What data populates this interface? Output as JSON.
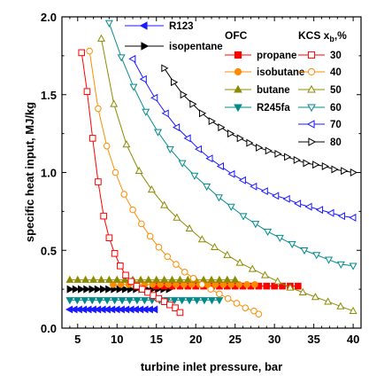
{
  "chart_data": {
    "type": "scatter",
    "xlabel": "turbine inlet pressure, bar",
    "ylabel": "specific heat input, MJ/kg",
    "xlim": [
      3,
      41
    ],
    "ylim": [
      0,
      2.0
    ],
    "xticks": [
      5,
      10,
      15,
      20,
      25,
      30,
      35,
      40
    ],
    "xtick_labels": [
      "5",
      "10",
      "15",
      "20",
      "25",
      "30",
      "35",
      "40"
    ],
    "yticks": [
      0,
      0.5,
      1.0,
      1.5,
      2.0
    ],
    "ytick_labels": [
      "0.0",
      "0.5",
      "1.0",
      "1.5",
      "2.0"
    ],
    "grid": false,
    "legend_ofc_title": "OFC",
    "legend_kcs_title": "KCS x",
    "legend_kcs_sub": "b",
    "legend_kcs_suffix": ",%",
    "series": [
      {
        "name": "R123",
        "group": "OFC",
        "marker": "triangle-left",
        "color": "#1a1aff",
        "filled": true,
        "x": [
          4.0,
          4.6,
          5.2,
          5.8,
          6.4,
          7.0,
          7.6,
          8.2,
          8.8,
          9.4,
          10.0,
          10.6,
          11.2,
          11.8,
          12.4,
          13.0,
          13.6,
          14.2,
          14.8
        ],
        "y": [
          0.12,
          0.12,
          0.12,
          0.12,
          0.12,
          0.12,
          0.12,
          0.12,
          0.12,
          0.12,
          0.12,
          0.12,
          0.12,
          0.12,
          0.12,
          0.12,
          0.12,
          0.12,
          0.12
        ]
      },
      {
        "name": "isopentane",
        "group": "OFC",
        "marker": "triangle-right",
        "color": "#000000",
        "filled": true,
        "x": [
          4.0,
          4.7,
          5.4,
          6.1,
          6.8,
          7.5,
          8.2,
          8.9,
          9.6,
          10.3,
          11.0,
          11.7,
          12.4,
          13.1,
          13.8,
          14.5,
          15.2,
          15.9,
          16.6
        ],
        "y": [
          0.25,
          0.25,
          0.25,
          0.25,
          0.25,
          0.25,
          0.25,
          0.25,
          0.25,
          0.25,
          0.25,
          0.25,
          0.25,
          0.25,
          0.25,
          0.25,
          0.25,
          0.25,
          0.25
        ]
      },
      {
        "name": "propane",
        "group": "OFC",
        "marker": "square",
        "color": "#ff0000",
        "filled": true,
        "x": [
          15.0,
          16.0,
          17.0,
          18.0,
          19.0,
          20.0,
          21.0,
          22.0,
          23.0,
          24.0,
          25.0,
          26.0,
          27.0,
          28.0,
          29.0,
          30.0,
          31.0,
          32.0,
          33.0
        ],
        "y": [
          0.27,
          0.27,
          0.27,
          0.27,
          0.27,
          0.27,
          0.27,
          0.27,
          0.27,
          0.27,
          0.27,
          0.27,
          0.27,
          0.27,
          0.27,
          0.27,
          0.27,
          0.27,
          0.27
        ]
      },
      {
        "name": "isobutane",
        "group": "OFC",
        "marker": "circle",
        "color": "#ff8c00",
        "filled": true,
        "x": [
          9.5,
          10.5,
          11.5,
          12.5,
          13.5,
          14.5,
          15.5,
          16.5,
          17.5,
          18.5,
          19.5,
          20.5,
          21.5,
          22.5,
          23.5,
          24.5,
          25.5,
          26.5,
          27.5
        ],
        "y": [
          0.28,
          0.28,
          0.28,
          0.28,
          0.28,
          0.28,
          0.28,
          0.28,
          0.28,
          0.28,
          0.28,
          0.28,
          0.28,
          0.28,
          0.28,
          0.28,
          0.28,
          0.28,
          0.28
        ]
      },
      {
        "name": "butane",
        "group": "OFC",
        "marker": "triangle-up",
        "color": "#8b8b00",
        "filled": true,
        "x": [
          4.0,
          5.0,
          6.0,
          7.0,
          8.0,
          9.0,
          10.0,
          11.0,
          12.0,
          13.0,
          14.0,
          15.0,
          16.0,
          17.0,
          18.0,
          19.0,
          20.0,
          21.0,
          22.0,
          23.0,
          24.0,
          25.0
        ],
        "y": [
          0.31,
          0.31,
          0.31,
          0.31,
          0.31,
          0.31,
          0.31,
          0.31,
          0.31,
          0.31,
          0.31,
          0.31,
          0.31,
          0.31,
          0.31,
          0.31,
          0.31,
          0.31,
          0.31,
          0.31,
          0.31,
          0.31
        ]
      },
      {
        "name": "R245fa",
        "group": "OFC",
        "marker": "triangle-down",
        "color": "#008b8b",
        "filled": true,
        "x": [
          4.0,
          4.95,
          5.9,
          6.85,
          7.8,
          8.75,
          9.7,
          10.65,
          11.6,
          12.55,
          13.5,
          14.45,
          15.4,
          16.35,
          17.3,
          18.25,
          19.2,
          20.15,
          21.1,
          22.05,
          23.0
        ],
        "y": [
          0.18,
          0.18,
          0.18,
          0.18,
          0.18,
          0.18,
          0.18,
          0.18,
          0.18,
          0.18,
          0.18,
          0.18,
          0.18,
          0.18,
          0.18,
          0.18,
          0.18,
          0.18,
          0.18,
          0.18,
          0.18
        ]
      },
      {
        "name": "30",
        "group": "KCS",
        "marker": "square",
        "color": "#ff0000",
        "filled": false,
        "x": [
          5.5,
          6.2,
          6.9,
          7.6,
          8.3,
          9.0,
          9.7,
          10.4,
          11.1,
          11.8,
          12.5,
          13.2,
          13.9,
          14.6,
          15.3,
          16.0,
          16.7,
          17.4,
          18.0
        ],
        "y": [
          1.77,
          1.52,
          1.22,
          0.94,
          0.72,
          0.58,
          0.48,
          0.4,
          0.34,
          0.3,
          0.27,
          0.25,
          0.23,
          0.21,
          0.19,
          0.17,
          0.15,
          0.13,
          0.1
        ]
      },
      {
        "name": "40",
        "group": "KCS",
        "marker": "circle",
        "color": "#ff8c00",
        "filled": false,
        "x": [
          6.5,
          7.6,
          8.7,
          9.8,
          10.9,
          12.0,
          13.1,
          14.2,
          15.3,
          16.4,
          17.5,
          18.6,
          19.7,
          20.8,
          21.9,
          23.0,
          24.1,
          25.2,
          26.3,
          27.4,
          28.0
        ],
        "y": [
          1.78,
          1.41,
          1.17,
          1.0,
          0.86,
          0.76,
          0.67,
          0.59,
          0.52,
          0.46,
          0.41,
          0.36,
          0.32,
          0.28,
          0.25,
          0.22,
          0.19,
          0.16,
          0.13,
          0.11,
          0.09
        ]
      },
      {
        "name": "50",
        "group": "KCS",
        "marker": "triangle-up",
        "color": "#8b8b00",
        "filled": false,
        "x": [
          8.0,
          9.6,
          11.2,
          12.8,
          14.4,
          16.0,
          17.6,
          19.2,
          20.8,
          22.4,
          24.0,
          25.6,
          27.2,
          28.8,
          30.4,
          32.0,
          33.6,
          35.2,
          36.8,
          38.4,
          40.0
        ],
        "y": [
          1.86,
          1.44,
          1.18,
          1.01,
          0.89,
          0.79,
          0.71,
          0.64,
          0.57,
          0.52,
          0.47,
          0.42,
          0.38,
          0.34,
          0.3,
          0.26,
          0.23,
          0.2,
          0.17,
          0.14,
          0.11
        ]
      },
      {
        "name": "60",
        "group": "KCS",
        "marker": "triangle-down",
        "color": "#008b8b",
        "filled": false,
        "x": [
          9.0,
          10.55,
          12.1,
          13.65,
          15.2,
          16.75,
          18.3,
          19.85,
          21.4,
          22.95,
          24.5,
          26.05,
          27.6,
          29.15,
          30.7,
          32.25,
          33.8,
          35.35,
          36.9,
          38.45,
          40.0
        ],
        "y": [
          1.96,
          1.74,
          1.55,
          1.39,
          1.26,
          1.15,
          1.06,
          0.98,
          0.91,
          0.84,
          0.78,
          0.72,
          0.67,
          0.62,
          0.58,
          0.54,
          0.5,
          0.47,
          0.44,
          0.41,
          0.4
        ]
      },
      {
        "name": "70",
        "group": "KCS",
        "marker": "triangle-left",
        "color": "#1a1aff",
        "filled": false,
        "x": [
          12.0,
          13.4,
          14.8,
          16.2,
          17.6,
          19.0,
          20.4,
          21.8,
          23.2,
          24.6,
          26.0,
          27.4,
          28.8,
          30.2,
          31.6,
          33.0,
          34.4,
          35.8,
          37.2,
          38.6,
          40.0
        ],
        "y": [
          1.73,
          1.6,
          1.48,
          1.38,
          1.29,
          1.22,
          1.15,
          1.09,
          1.04,
          0.99,
          0.95,
          0.91,
          0.88,
          0.85,
          0.83,
          0.8,
          0.78,
          0.76,
          0.74,
          0.72,
          0.71
        ]
      },
      {
        "name": "80",
        "group": "KCS",
        "marker": "triangle-right",
        "color": "#000000",
        "filled": false,
        "x": [
          16.0,
          17.2,
          18.4,
          19.6,
          20.8,
          22.0,
          23.2,
          24.4,
          25.6,
          26.8,
          28.0,
          29.2,
          30.4,
          31.6,
          32.8,
          34.0,
          35.2,
          36.4,
          37.6,
          38.8,
          40.0
        ],
        "y": [
          1.67,
          1.58,
          1.5,
          1.44,
          1.38,
          1.33,
          1.29,
          1.25,
          1.22,
          1.19,
          1.16,
          1.14,
          1.12,
          1.1,
          1.08,
          1.06,
          1.05,
          1.04,
          1.02,
          1.01,
          1.0
        ]
      }
    ]
  }
}
